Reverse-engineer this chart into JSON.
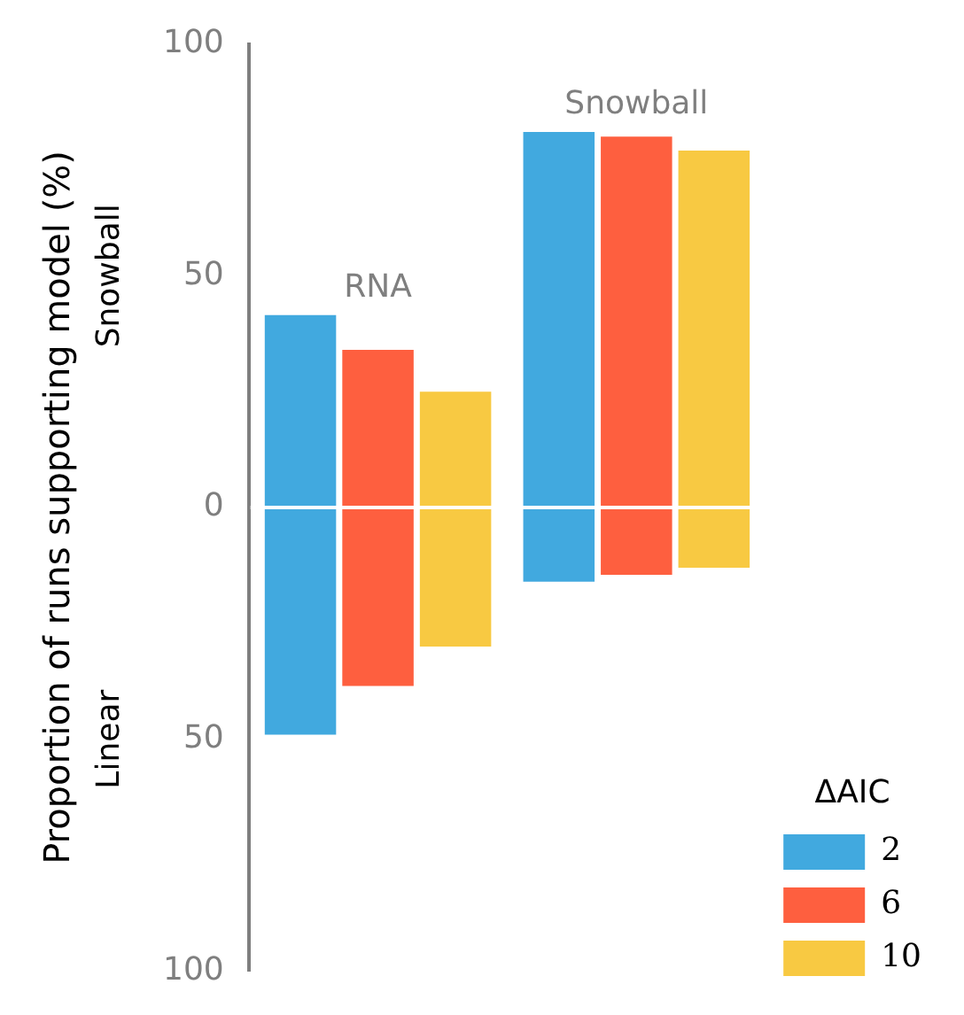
{
  "chart_data": {
    "type": "bar",
    "ylabel": "Proportion of runs supporting model (%)",
    "legend_title": "ΔAIC",
    "categories": [
      "RNA",
      "Snowball"
    ],
    "series": [
      {
        "name": "2",
        "color": "#41a9df",
        "base": [
          -49,
          -16
        ],
        "values": [
          90.5,
          97
        ]
      },
      {
        "name": "6",
        "color": "#fe5f3f",
        "base": [
          -38.5,
          -14.5
        ],
        "values": [
          72.5,
          94.5
        ]
      },
      {
        "name": "10",
        "color": "#f8c942",
        "base": [
          -30,
          -13
        ],
        "values": [
          55,
          90
        ]
      }
    ],
    "ylim": [
      -100,
      100
    ],
    "yticks": [
      {
        "value": -100,
        "label": "100"
      },
      {
        "value": -50,
        "label": "50"
      },
      0,
      50,
      100
    ],
    "ref_lines": [
      {
        "axis": "y",
        "value": 0,
        "color": "#ffffff"
      }
    ],
    "annotations": [
      "Snowball",
      "Linear"
    ],
    "grid": false,
    "legend": "bottom right"
  }
}
